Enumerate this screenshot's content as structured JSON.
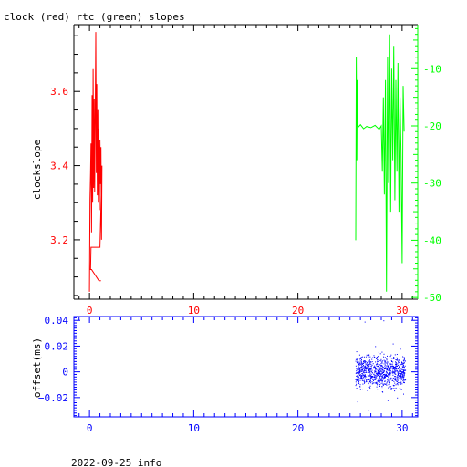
{
  "chart_data": [
    {
      "type": "line",
      "title": "clock (red) rtc (green) slopes",
      "xlabel": "",
      "ylabel": "clockslope",
      "xlim": [
        -1.5,
        31.5
      ],
      "ylim": [
        3.04,
        3.78
      ],
      "y2lim": [
        -50.3,
        -2.3
      ],
      "x_ticks": [
        0,
        10,
        20,
        30
      ],
      "y_ticks": [
        3.2,
        3.4,
        3.6
      ],
      "y2_ticks": [
        -10,
        -20,
        -30,
        -40,
        -50
      ],
      "grid": false,
      "colors": {
        "axes": "#000000",
        "clock": "#ff0000",
        "rtc": "#00ff00"
      },
      "series": [
        {
          "name": "clock",
          "color": "#ff0000",
          "axis": "left",
          "x": [
            0.0,
            0.05,
            0.1,
            0.15,
            0.2,
            0.25,
            0.3,
            0.35,
            0.4,
            0.45,
            0.5,
            0.55,
            0.6,
            0.65,
            0.7,
            0.75,
            0.8,
            0.85,
            0.9,
            0.95,
            1.0,
            1.05,
            1.1,
            1.15,
            1.2,
            1.0,
            0.9,
            0.3,
            0.15,
            0.1,
            0.2,
            0.9,
            1.1
          ],
          "y": [
            3.06,
            3.31,
            3.38,
            3.46,
            3.22,
            3.59,
            3.3,
            3.66,
            3.34,
            3.58,
            3.33,
            3.52,
            3.76,
            3.38,
            3.62,
            3.32,
            3.55,
            3.3,
            3.5,
            3.28,
            3.47,
            3.35,
            3.45,
            3.2,
            3.4,
            3.18,
            3.18,
            3.18,
            3.18,
            3.12,
            3.12,
            3.09,
            3.09
          ]
        },
        {
          "name": "rtc",
          "color": "#00ff00",
          "axis": "right",
          "x": [
            25.55,
            25.6,
            25.65,
            25.7,
            25.75,
            25.8,
            26.0,
            26.3,
            26.6,
            27.0,
            27.4,
            27.8,
            28.0,
            28.1,
            28.2,
            28.3,
            28.4,
            28.5,
            28.6,
            28.7,
            28.8,
            28.9,
            29.0,
            29.1,
            29.2,
            29.3,
            29.4,
            29.5,
            29.6,
            29.7,
            29.8,
            29.9,
            30.0,
            30.1,
            30.2
          ],
          "y": [
            -40.0,
            -8.0,
            -26.0,
            -12.0,
            -20.0,
            -20.2,
            -19.8,
            -20.5,
            -20.1,
            -20.3,
            -19.9,
            -20.6,
            -20.0,
            -28.0,
            -15.0,
            -32.0,
            -12.0,
            -49.0,
            -8.0,
            -30.0,
            -4.0,
            -35.0,
            -10.0,
            -26.0,
            -6.0,
            -33.0,
            -12.0,
            -28.0,
            -9.0,
            -35.0,
            -15.0,
            -25.0,
            -44.0,
            -13.0,
            -21.0
          ]
        }
      ]
    },
    {
      "type": "scatter",
      "title": "",
      "xlabel": "",
      "ylabel": "offset(ms)",
      "xlim": [
        -1.5,
        31.5
      ],
      "ylim": [
        -0.035,
        0.043
      ],
      "x_ticks": [
        0,
        10,
        20,
        30
      ],
      "y_ticks": [
        0.04,
        0.02,
        0,
        -0.02
      ],
      "y_tick_labels": [
        "0.04",
        "0.02",
        "0",
        "−0.02"
      ],
      "grid": false,
      "colors": {
        "axes": "#0000ff",
        "points": "#0000ff"
      },
      "series": [
        {
          "name": "offset",
          "x_range": [
            25.5,
            30.3
          ],
          "y_center": 0.0,
          "y_spread": 0.009,
          "count": 900,
          "outliers": [
            [
              25.6,
              0.016
            ],
            [
              25.7,
              -0.023
            ],
            [
              26.4,
              0.039
            ],
            [
              26.7,
              -0.03
            ],
            [
              27.4,
              0.02
            ],
            [
              28.2,
              0.04
            ],
            [
              28.6,
              -0.022
            ],
            [
              29.1,
              0.022
            ],
            [
              29.5,
              -0.02
            ],
            [
              29.8,
              0.018
            ],
            [
              30.1,
              -0.017
            ]
          ]
        }
      ]
    }
  ],
  "footer": {
    "date_info": "2022-09-25 info"
  }
}
